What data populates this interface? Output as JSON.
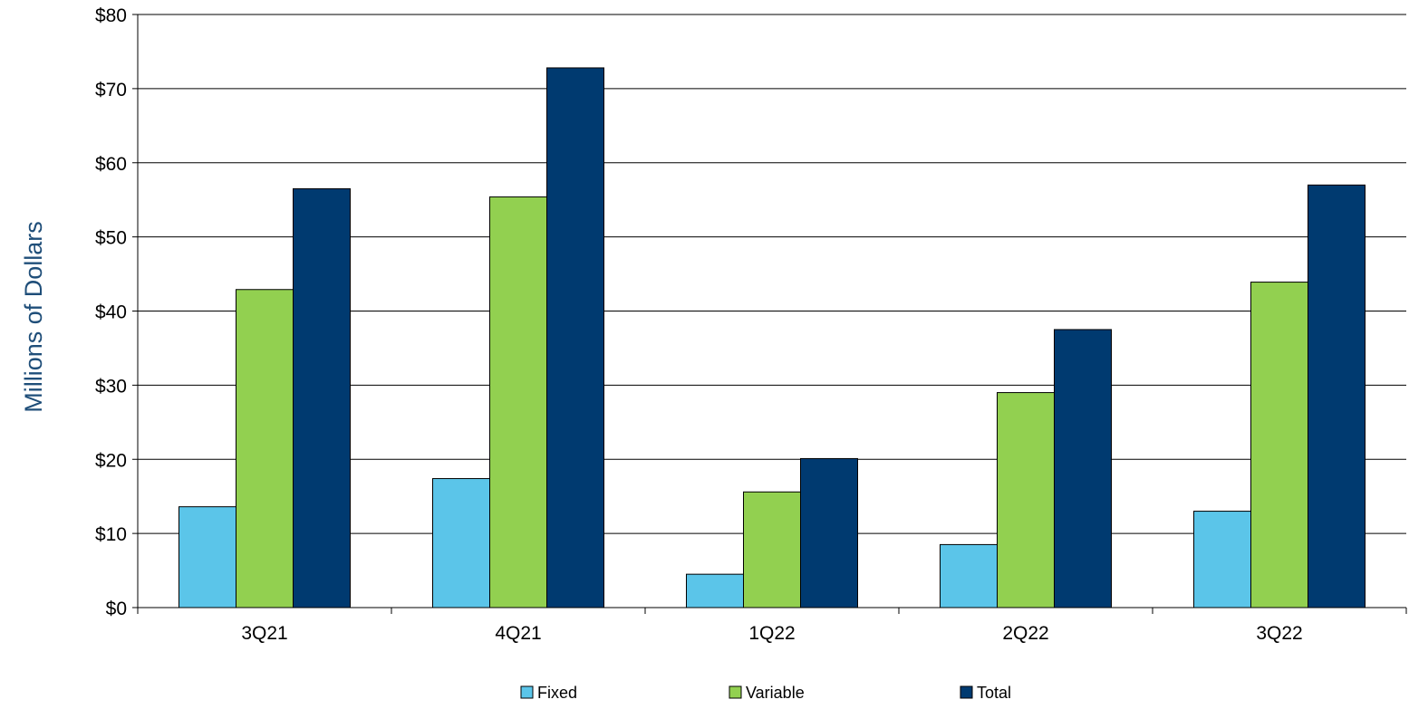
{
  "chart_data": {
    "type": "bar",
    "title": "",
    "xlabel": "",
    "ylabel": "Millions of Dollars",
    "categories": [
      "3Q21",
      "4Q21",
      "1Q22",
      "2Q22",
      "3Q22"
    ],
    "series": [
      {
        "name": "Fixed",
        "color": "#5bc5e9",
        "values": [
          13.6,
          17.4,
          4.5,
          8.5,
          13.0
        ]
      },
      {
        "name": "Variable",
        "color": "#92d050",
        "values": [
          42.9,
          55.4,
          15.6,
          29.0,
          43.9
        ]
      },
      {
        "name": "Total",
        "color": "#003a70",
        "values": [
          56.5,
          72.8,
          20.1,
          37.5,
          57.0
        ]
      }
    ],
    "ylim": [
      0,
      80
    ],
    "yticks": [
      0,
      10,
      20,
      30,
      40,
      50,
      60,
      70,
      80
    ],
    "ytick_labels": [
      "$0",
      "$10",
      "$20",
      "$30",
      "$40",
      "$50",
      "$60",
      "$70",
      "$80"
    ],
    "ylabel_color": "#1f4e79",
    "grid": true,
    "legend_position": "bottom"
  }
}
